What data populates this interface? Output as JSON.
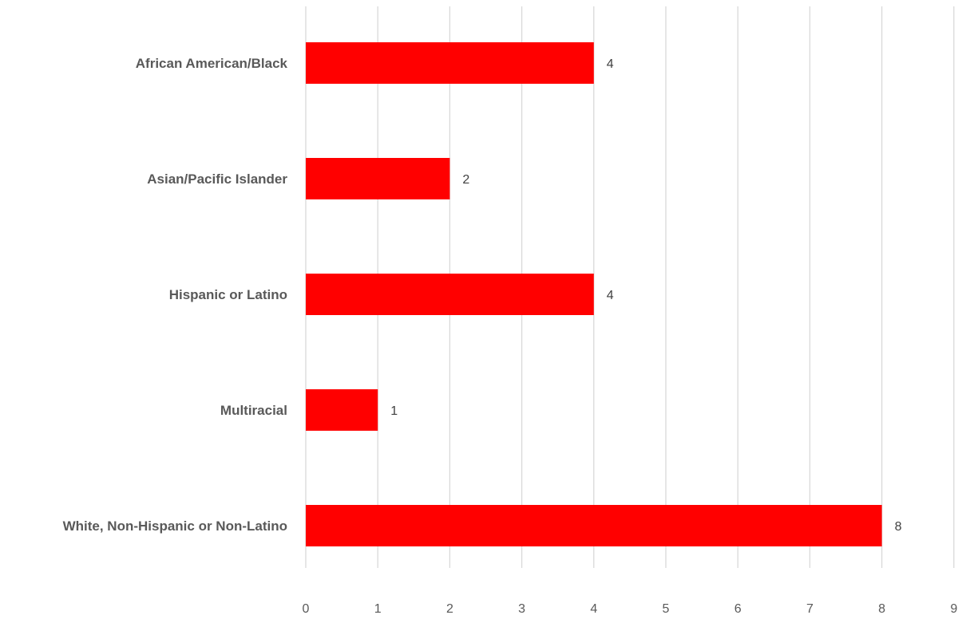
{
  "chart_data": {
    "type": "bar",
    "orientation": "horizontal",
    "title": "",
    "xlabel": "",
    "ylabel": "",
    "categories": [
      "African American/Black",
      "Asian/Pacific Islander",
      "Hispanic or Latino",
      "Multiracial",
      "White, Non-Hispanic or Non-Latino"
    ],
    "values": [
      4,
      2,
      4,
      1,
      8
    ],
    "data_labels": [
      "4",
      "2",
      "4",
      "1",
      "8"
    ],
    "xlim": [
      0,
      9
    ],
    "x_ticks": [
      "0",
      "1",
      "2",
      "3",
      "4",
      "5",
      "6",
      "7",
      "8",
      "9"
    ],
    "grid": true,
    "legend": "none",
    "colors": {
      "bar": "#ff0000",
      "grid": "#d9d9d9",
      "text": "#595959"
    }
  }
}
